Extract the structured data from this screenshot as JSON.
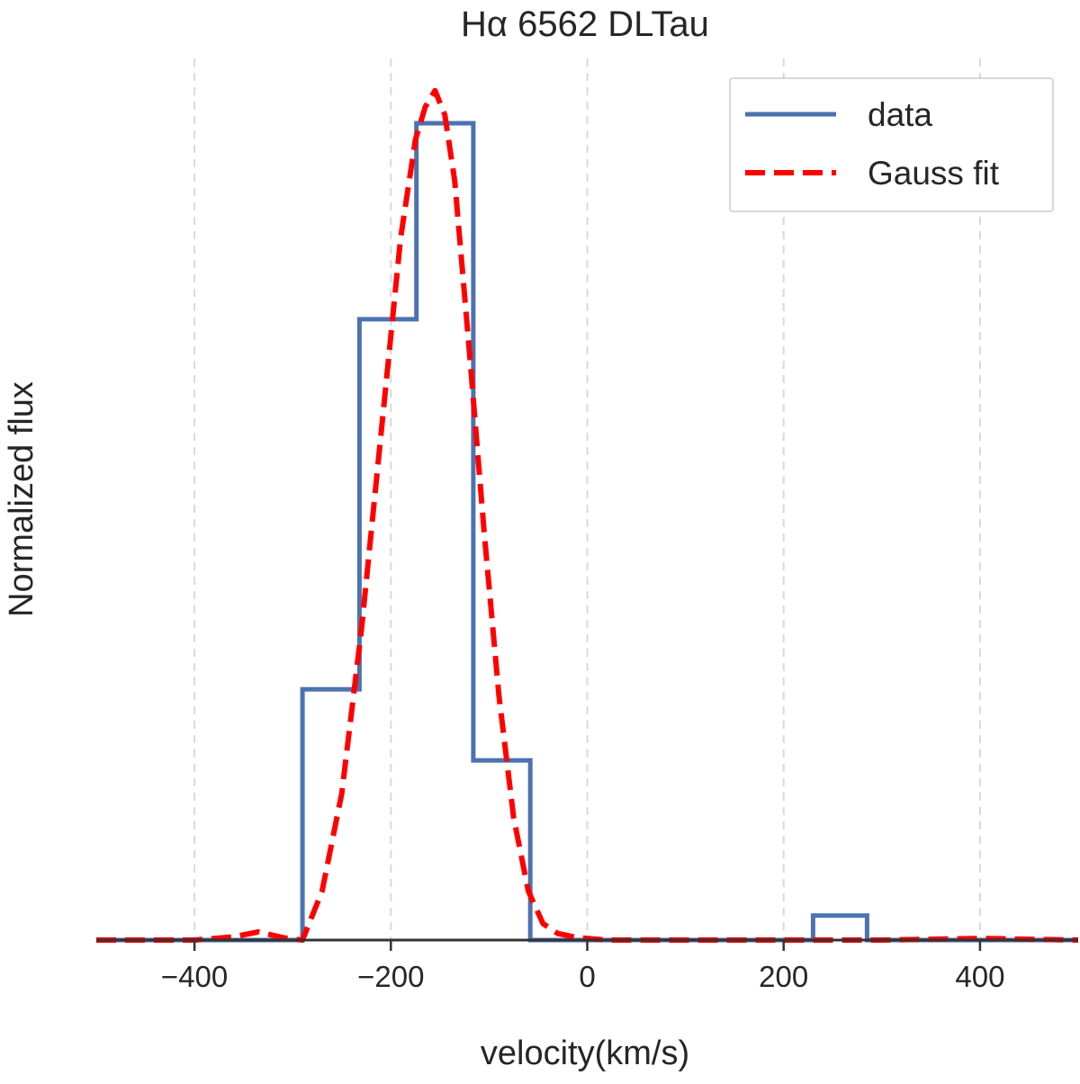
{
  "chart_data": {
    "type": "line",
    "title": "Hα 6562 DLTau",
    "xlabel": "velocity(km/s)",
    "ylabel": "Normalized flux",
    "xlim": [
      -500,
      500
    ],
    "ylim": [
      0,
      1.0
    ],
    "grid": "x-only dashed",
    "legend_position": "top-right",
    "x_ticks": [
      -400,
      -200,
      0,
      200,
      400
    ],
    "x_tick_labels": [
      "−400",
      "−200",
      "0",
      "200",
      "400"
    ],
    "series": [
      {
        "name": "data",
        "style": "steps",
        "color": "#4C72B0",
        "x": [
          -500,
          -290,
          -290,
          -232,
          -232,
          -174,
          -174,
          -116,
          -116,
          -58,
          -58,
          230,
          230,
          285,
          285,
          500
        ],
        "y": [
          0,
          0,
          0.307,
          0.307,
          0.76,
          0.76,
          1.0,
          1.0,
          0.22,
          0.22,
          0,
          0,
          0.03,
          0.03,
          0,
          0
        ]
      },
      {
        "name": "Gauss fit",
        "style": "dashed",
        "color": "#FF0000",
        "x": [
          -500,
          -400,
          -360,
          -335,
          -310,
          -290,
          -270,
          -250,
          -230,
          -210,
          -190,
          -175,
          -165,
          -155,
          -145,
          -135,
          -120,
          -105,
          -90,
          -75,
          -60,
          -45,
          -30,
          -10,
          20,
          100,
          200,
          300,
          400,
          500
        ],
        "y": [
          0,
          0,
          0.004,
          0.01,
          0.003,
          0.0,
          0.06,
          0.18,
          0.38,
          0.62,
          0.86,
          0.98,
          1.02,
          1.04,
          1.01,
          0.93,
          0.72,
          0.5,
          0.3,
          0.15,
          0.06,
          0.02,
          0.008,
          0.003,
          0.0,
          0,
          0,
          0,
          0.002,
          0
        ]
      }
    ]
  }
}
